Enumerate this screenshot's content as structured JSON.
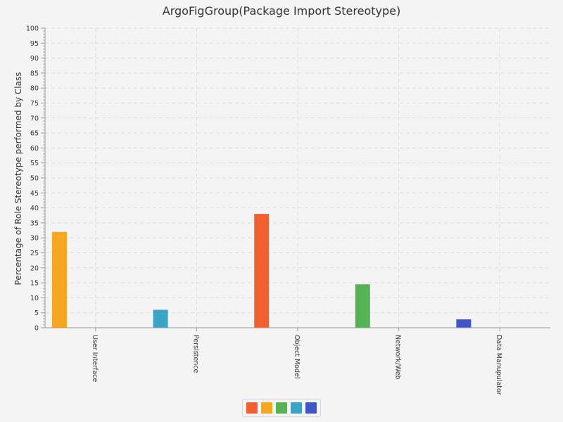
{
  "chart_data": {
    "type": "bar",
    "title": "ArgoFigGroup(Package Import Stereotype)",
    "xlabel": "",
    "ylabel": "Percentage of Role Stereotype performed by Class",
    "ylim": [
      0,
      100
    ],
    "ytick_step": 5,
    "grid": true,
    "legend_position": "bottom",
    "categories": [
      "User Interface",
      "Persistence",
      "Object Model",
      "Network/Web",
      "Data Manupulator"
    ],
    "series": [
      {
        "values": [
          0,
          0,
          38,
          0,
          0
        ],
        "color": "#f26030"
      },
      {
        "values": [
          32,
          0,
          0,
          0,
          0
        ],
        "color": "#f5a623"
      },
      {
        "values": [
          0,
          0,
          0,
          14.5,
          0
        ],
        "color": "#55b355"
      },
      {
        "values": [
          0,
          6,
          0,
          0,
          0
        ],
        "color": "#3ba4c6"
      },
      {
        "values": [
          0,
          0,
          0,
          0,
          2.8
        ],
        "color": "#4055c8"
      }
    ]
  }
}
